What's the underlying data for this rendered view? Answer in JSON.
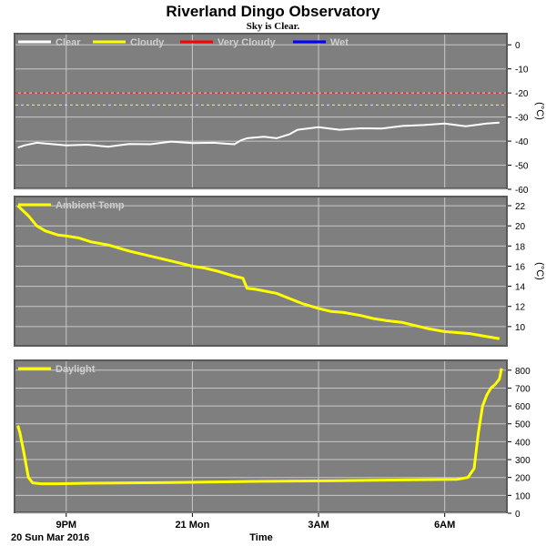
{
  "title": "Riverland Dingo Observatory",
  "subtitle": "Sky is Clear.",
  "colors": {
    "plot_bg": "#7f7f7f",
    "grid": "#c8c8c8",
    "clear": "#ffffff",
    "cloudy": "#ffff00",
    "very_cloudy": "#ff0000",
    "wet": "#0000ff",
    "ambient": "#ffff00",
    "daylight": "#ffff00"
  },
  "x_axis": {
    "label": "Time",
    "start_label": "20 Sun Mar 2016",
    "start_hour": 19.75,
    "end_hour": 31.5,
    "ticks": [
      {
        "hour": 21,
        "label": "9PM"
      },
      {
        "hour": 24,
        "label": "21 Mon"
      },
      {
        "hour": 27,
        "label": "3AM"
      },
      {
        "hour": 30,
        "label": "6AM"
      }
    ]
  },
  "chart_data": [
    {
      "type": "line",
      "name": "sky-temperature",
      "legend": [
        "Clear",
        "Cloudy",
        "Very Cloudy",
        "Wet"
      ],
      "unit": "(°C)",
      "ylim": [
        -60,
        5
      ],
      "yticks": [
        0,
        -10,
        -20,
        -30,
        -40,
        -50,
        -60
      ],
      "thresholds": [
        {
          "value": -20,
          "color_key": "very_cloudy"
        },
        {
          "value": -25,
          "color_key": "cloudy"
        }
      ],
      "series": [
        {
          "color_key": "clear",
          "x": [
            19.85,
            20.0,
            20.3,
            21.0,
            21.5,
            22.0,
            22.5,
            23.0,
            23.5,
            24.0,
            24.5,
            25.0,
            25.15,
            25.3,
            25.7,
            26.0,
            26.3,
            26.5,
            27.0,
            27.5,
            28.0,
            28.5,
            29.0,
            29.5,
            30.0,
            30.5,
            31.0,
            31.3
          ],
          "values": [
            -43,
            -41.5,
            -41,
            -41.5,
            -41.8,
            -42,
            -41.5,
            -41,
            -40.5,
            -40.5,
            -41,
            -41,
            -40,
            -38.5,
            -38.5,
            -38.5,
            -37.5,
            -35,
            -34.5,
            -35,
            -35,
            -34.5,
            -34,
            -33,
            -33,
            -33.5,
            -33,
            -32
          ]
        }
      ]
    },
    {
      "type": "line",
      "name": "ambient-temperature",
      "legend": [
        "Ambient Temp"
      ],
      "unit": "(°C)",
      "ylim": [
        8,
        23
      ],
      "yticks": [
        10,
        12,
        14,
        16,
        18,
        20,
        22
      ],
      "series": [
        {
          "color_key": "ambient",
          "x": [
            19.85,
            20.1,
            20.3,
            20.5,
            20.8,
            21.0,
            21.3,
            21.6,
            22.0,
            22.5,
            23.0,
            23.3,
            23.7,
            24.0,
            24.3,
            24.6,
            25.0,
            25.2,
            25.3,
            25.5,
            26.0,
            26.3,
            26.6,
            27.0,
            27.3,
            27.6,
            28.0,
            28.3,
            28.6,
            29.0,
            29.3,
            29.6,
            30.0,
            30.3,
            30.6,
            31.0,
            31.3
          ],
          "values": [
            22.0,
            21.0,
            20.0,
            19.5,
            19.1,
            19.0,
            18.8,
            18.4,
            18.1,
            17.5,
            17.0,
            16.7,
            16.3,
            16.0,
            15.8,
            15.5,
            15.0,
            14.8,
            13.8,
            13.7,
            13.3,
            12.8,
            12.3,
            11.8,
            11.5,
            11.4,
            11.1,
            10.8,
            10.6,
            10.4,
            10.1,
            9.8,
            9.5,
            9.4,
            9.3,
            9.0,
            8.8
          ]
        }
      ]
    },
    {
      "type": "line",
      "name": "daylight",
      "legend": [
        "Daylight"
      ],
      "unit": "",
      "ylim": [
        0,
        860
      ],
      "yticks": [
        0,
        100,
        200,
        300,
        400,
        500,
        600,
        700,
        800
      ],
      "series": [
        {
          "color_key": "daylight",
          "x": [
            19.85,
            19.9,
            20.0,
            20.1,
            20.2,
            20.4,
            20.8,
            21.5,
            22.5,
            23.5,
            24.5,
            25.5,
            26.5,
            27.5,
            28.5,
            29.5,
            30.3,
            30.55,
            30.7,
            30.8,
            30.9,
            31.0,
            31.1,
            31.2,
            31.3,
            31.35
          ],
          "values": [
            490,
            450,
            330,
            200,
            170,
            165,
            165,
            168,
            170,
            172,
            175,
            178,
            180,
            182,
            185,
            188,
            190,
            200,
            250,
            450,
            600,
            660,
            700,
            720,
            750,
            810
          ]
        }
      ]
    }
  ]
}
